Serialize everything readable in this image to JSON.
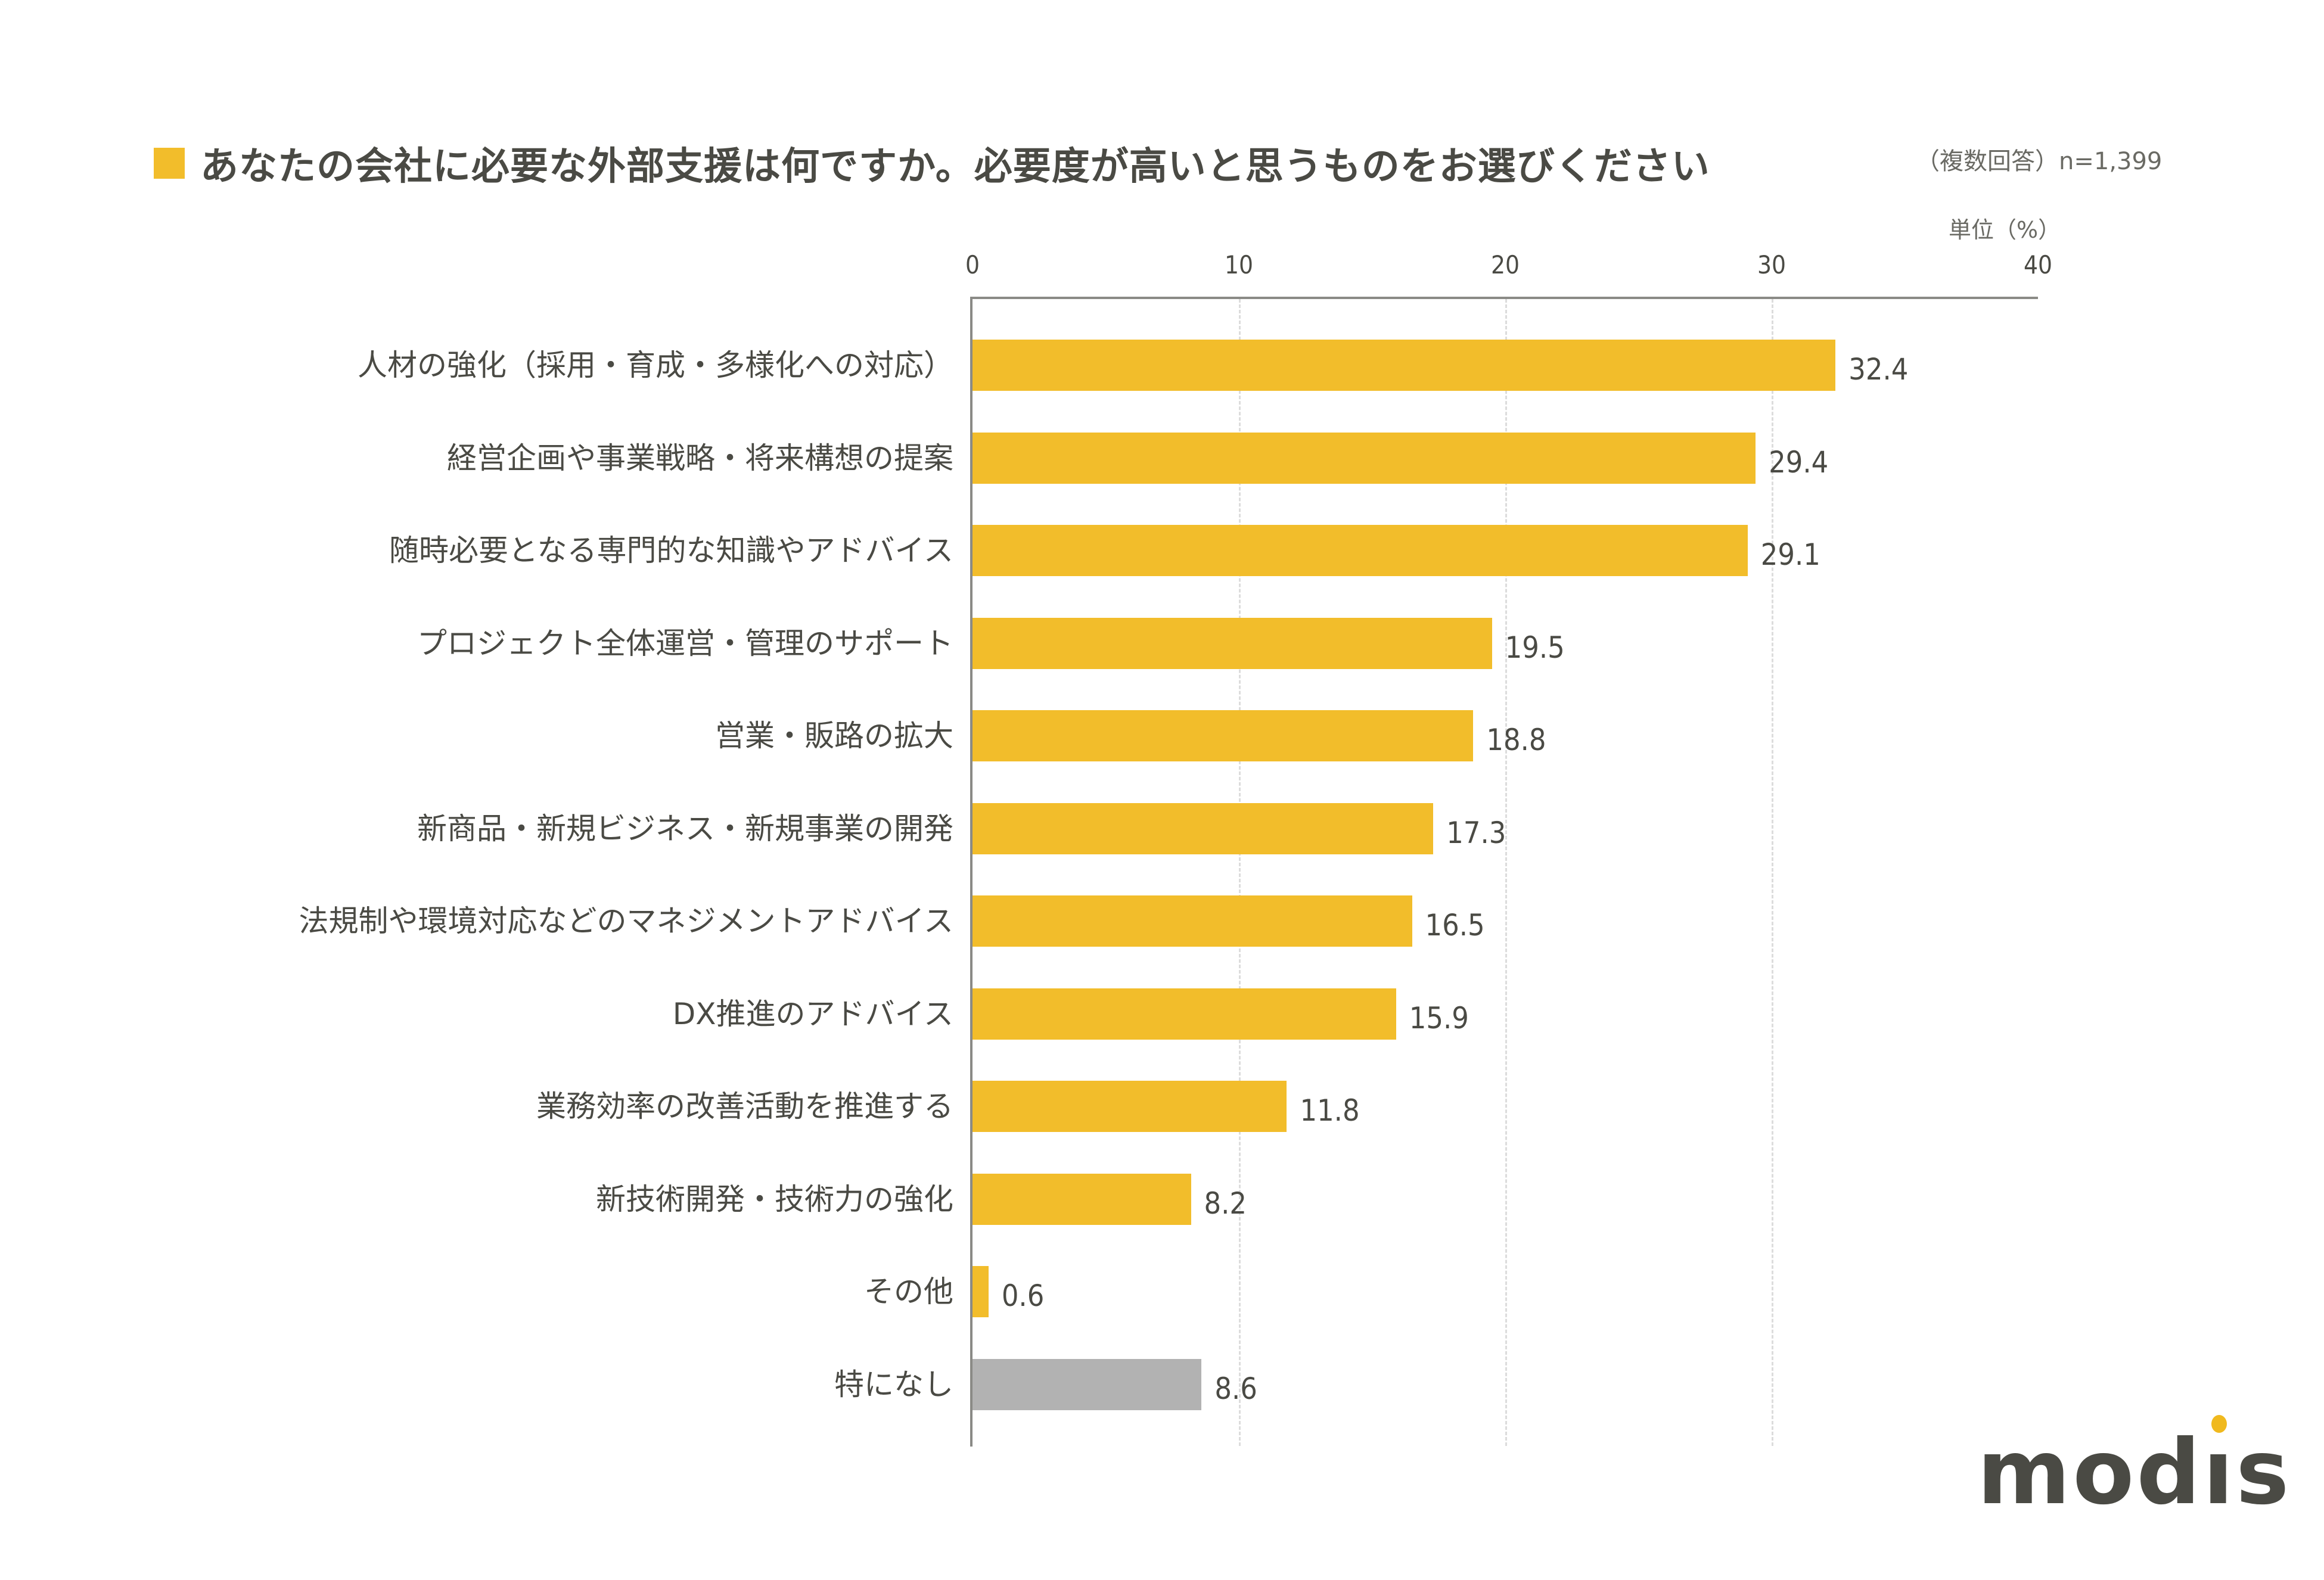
{
  "header": {
    "title": "あなたの会社に必要な外部支援は何ですか。必要度が高いと思うものをお選びください",
    "note": "（複数回答）n=1,399",
    "unit": "単位（%）"
  },
  "colors": {
    "primary_bar": "#f2bd2b",
    "none_bar": "#b2b2b2",
    "text": "#4a4a44",
    "axis": "#8a8a86",
    "grid": "#dcdcdc"
  },
  "axis": {
    "ticks": [
      "0",
      "10",
      "20",
      "30",
      "40"
    ]
  },
  "logo": {
    "text_before": "mod",
    "i": "ı",
    "text_after": "s"
  },
  "chart_data": {
    "type": "bar",
    "orientation": "horizontal",
    "title": "あなたの会社に必要な外部支援は何ですか。必要度が高いと思うものをお選びください",
    "subtitle": "（複数回答）n=1,399",
    "xlabel": "単位（%）",
    "ylabel": "",
    "xlim": [
      0,
      40
    ],
    "xticks": [
      0,
      10,
      20,
      30,
      40
    ],
    "grid": "vertical dashed",
    "legend": "none",
    "categories": [
      "人材の強化（採用・育成・多様化への対応）",
      "経営企画や事業戦略・将来構想の提案",
      "随時必要となる専門的な知識やアドバイス",
      "プロジェクト全体運営・管理のサポート",
      "営業・販路の拡大",
      "新商品・新規ビジネス・新規事業の開発",
      "法規制や環境対応などのマネジメントアドバイス",
      "DX推進のアドバイス",
      "業務効率の改善活動を推進する",
      "新技術開発・技術力の強化",
      "その他",
      "特になし"
    ],
    "values": [
      32.4,
      29.4,
      29.1,
      19.5,
      18.8,
      17.3,
      16.5,
      15.9,
      11.8,
      8.2,
      0.6,
      8.6
    ],
    "value_labels": [
      "32.4",
      "29.4",
      "29.1",
      "19.5",
      "18.8",
      "17.3",
      "16.5",
      "15.9",
      "11.8",
      "8.2",
      "0.6",
      "8.6"
    ],
    "bar_colors": [
      "#f2bd2b",
      "#f2bd2b",
      "#f2bd2b",
      "#f2bd2b",
      "#f2bd2b",
      "#f2bd2b",
      "#f2bd2b",
      "#f2bd2b",
      "#f2bd2b",
      "#f2bd2b",
      "#f2bd2b",
      "#b2b2b2"
    ]
  }
}
